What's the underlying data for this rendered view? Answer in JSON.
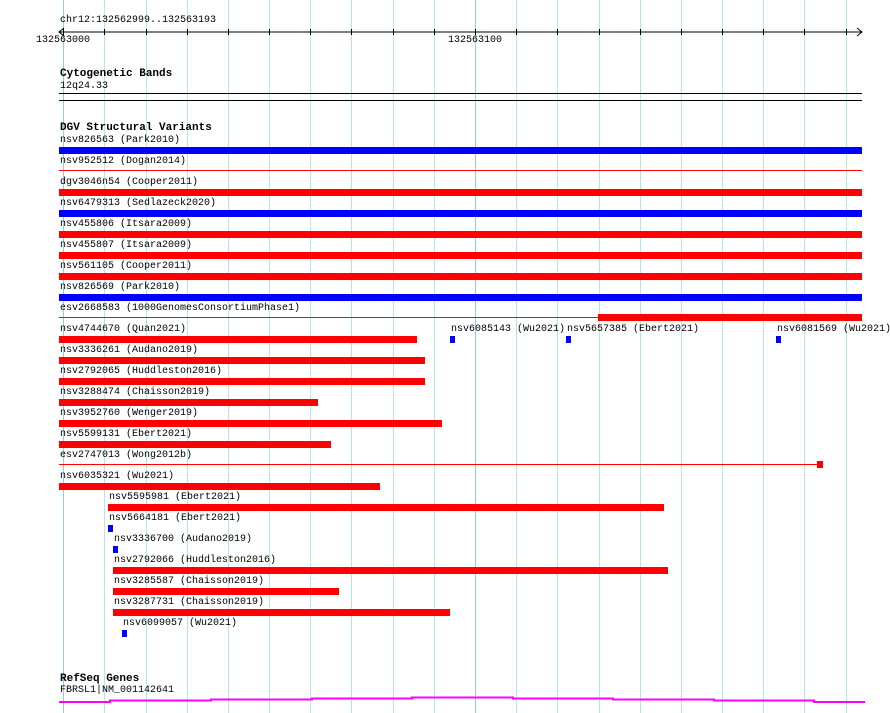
{
  "view": {
    "chrom": "chr12",
    "start": 132562999,
    "end": 132563193,
    "location_label": "chr12:132562999..132563193"
  },
  "ruler": {
    "labels": [
      {
        "pos": 132563000,
        "text": "132563000"
      },
      {
        "pos": 132563100,
        "text": "132563100"
      }
    ]
  },
  "colors": {
    "red": "#ff0000",
    "blue": "#0000ff",
    "gene": "#ff00ff",
    "grid": "#b4e6ee"
  },
  "tracks": {
    "cytoband": {
      "title": "Cytogenetic Bands",
      "band": "12q24.33"
    },
    "dgv": {
      "title": "DGV Structural Variants",
      "features": [
        {
          "row": 0,
          "label": "nsv826563 (Park2010)",
          "color": "blue",
          "start": 132562999,
          "end": 132563194,
          "style": "thick"
        },
        {
          "row": 1,
          "label": "nsv952512 (Dogan2014)",
          "color": "red",
          "start": 132562999,
          "end": 132563194,
          "style": "thin"
        },
        {
          "row": 2,
          "label": "dgv3046n54 (Cooper2011)",
          "color": "red",
          "start": 132562999,
          "end": 132563194,
          "style": "thick"
        },
        {
          "row": 3,
          "label": "nsv6479313 (Sedlazeck2020)",
          "color": "blue",
          "start": 132562999,
          "end": 132563194,
          "style": "thick"
        },
        {
          "row": 4,
          "label": "nsv455806 (Itsara2009)",
          "color": "red",
          "start": 132562999,
          "end": 132563194,
          "style": "thick"
        },
        {
          "row": 5,
          "label": "nsv455807 (Itsara2009)",
          "color": "red",
          "start": 132562999,
          "end": 132563194,
          "style": "thick"
        },
        {
          "row": 6,
          "label": "nsv561105 (Cooper2011)",
          "color": "red",
          "start": 132562999,
          "end": 132563194,
          "style": "thick"
        },
        {
          "row": 7,
          "label": "nsv826569 (Park2010)",
          "color": "blue",
          "start": 132562999,
          "end": 132563194,
          "style": "thick"
        },
        {
          "row": 8,
          "label": "esv2668583 (1000GenomesConsortiumPhase1)",
          "color": "red",
          "start": 132562999,
          "end": 132563194,
          "style": "thin",
          "thick_start": 132563130,
          "thick_end": 132563194
        },
        {
          "row": 9,
          "label": "nsv4744670 (Quan2021)",
          "color": "red",
          "start": 132562999,
          "end": 132563086,
          "style": "thick"
        },
        {
          "row": 9,
          "label": "nsv6085143 (Wu2021)",
          "color": "blue",
          "start": 132563094,
          "end": 132563095,
          "style": "thick"
        },
        {
          "row": 9,
          "label": "nsv5657385 (Ebert2021)",
          "color": "blue",
          "start": 132563122,
          "end": 132563123,
          "style": "thick"
        },
        {
          "row": 9,
          "label": "nsv6081569 (Wu2021)",
          "color": "blue",
          "start": 132563173,
          "end": 132563174,
          "style": "thick"
        },
        {
          "row": 10,
          "label": "nsv3336261 (Audano2019)",
          "color": "red",
          "start": 132562999,
          "end": 132563088,
          "style": "thick"
        },
        {
          "row": 11,
          "label": "nsv2792065 (Huddleston2016)",
          "color": "red",
          "start": 132562999,
          "end": 132563088,
          "style": "thick"
        },
        {
          "row": 12,
          "label": "nsv3288474 (Chaisson2019)",
          "color": "red",
          "start": 132562999,
          "end": 132563062,
          "style": "thick"
        },
        {
          "row": 13,
          "label": "nsv3952760 (Wenger2019)",
          "color": "red",
          "start": 132562999,
          "end": 132563092,
          "style": "thick"
        },
        {
          "row": 14,
          "label": "nsv5599131 (Ebert2021)",
          "color": "red",
          "start": 132562999,
          "end": 132563065,
          "style": "thick"
        },
        {
          "row": 15,
          "label": "esv2747013 (Wong2012b)",
          "color": "red",
          "start": 132562999,
          "end": 132563183,
          "style": "thin",
          "thick_start": 132563183,
          "thick_end": 132563184.5
        },
        {
          "row": 16,
          "label": "nsv6035321 (Wu2021)",
          "color": "red",
          "start": 132562999,
          "end": 132563077,
          "style": "thick"
        },
        {
          "row": 17,
          "label": "nsv5595981 (Ebert2021)",
          "color": "red",
          "start": 132563011,
          "end": 132563146,
          "style": "thick"
        },
        {
          "row": 18,
          "label": "nsv5664181 (Ebert2021)",
          "color": "blue",
          "start": 132563011,
          "end": 132563012,
          "style": "thick"
        },
        {
          "row": 19,
          "label": "nsv3336700 (Audano2019)",
          "color": "blue",
          "start": 132563012,
          "end": 132563013,
          "style": "thick"
        },
        {
          "row": 20,
          "label": "nsv2792066 (Huddleston2016)",
          "color": "red",
          "start": 132563012,
          "end": 132563147,
          "style": "thick"
        },
        {
          "row": 21,
          "label": "nsv3285587 (Chaisson2019)",
          "color": "red",
          "start": 132563012,
          "end": 132563067,
          "style": "thick"
        },
        {
          "row": 22,
          "label": "nsv3287731 (Chaisson2019)",
          "color": "red",
          "start": 132563012,
          "end": 132563094,
          "style": "thick"
        },
        {
          "row": 23,
          "label": "nsv6099057 (Wu2021)",
          "color": "blue",
          "start": 132563014.2,
          "end": 132563015.2,
          "style": "thick"
        }
      ]
    },
    "refseq": {
      "title": "RefSeq Genes",
      "gene_label": "FBRSL1|NM_001142641"
    }
  }
}
